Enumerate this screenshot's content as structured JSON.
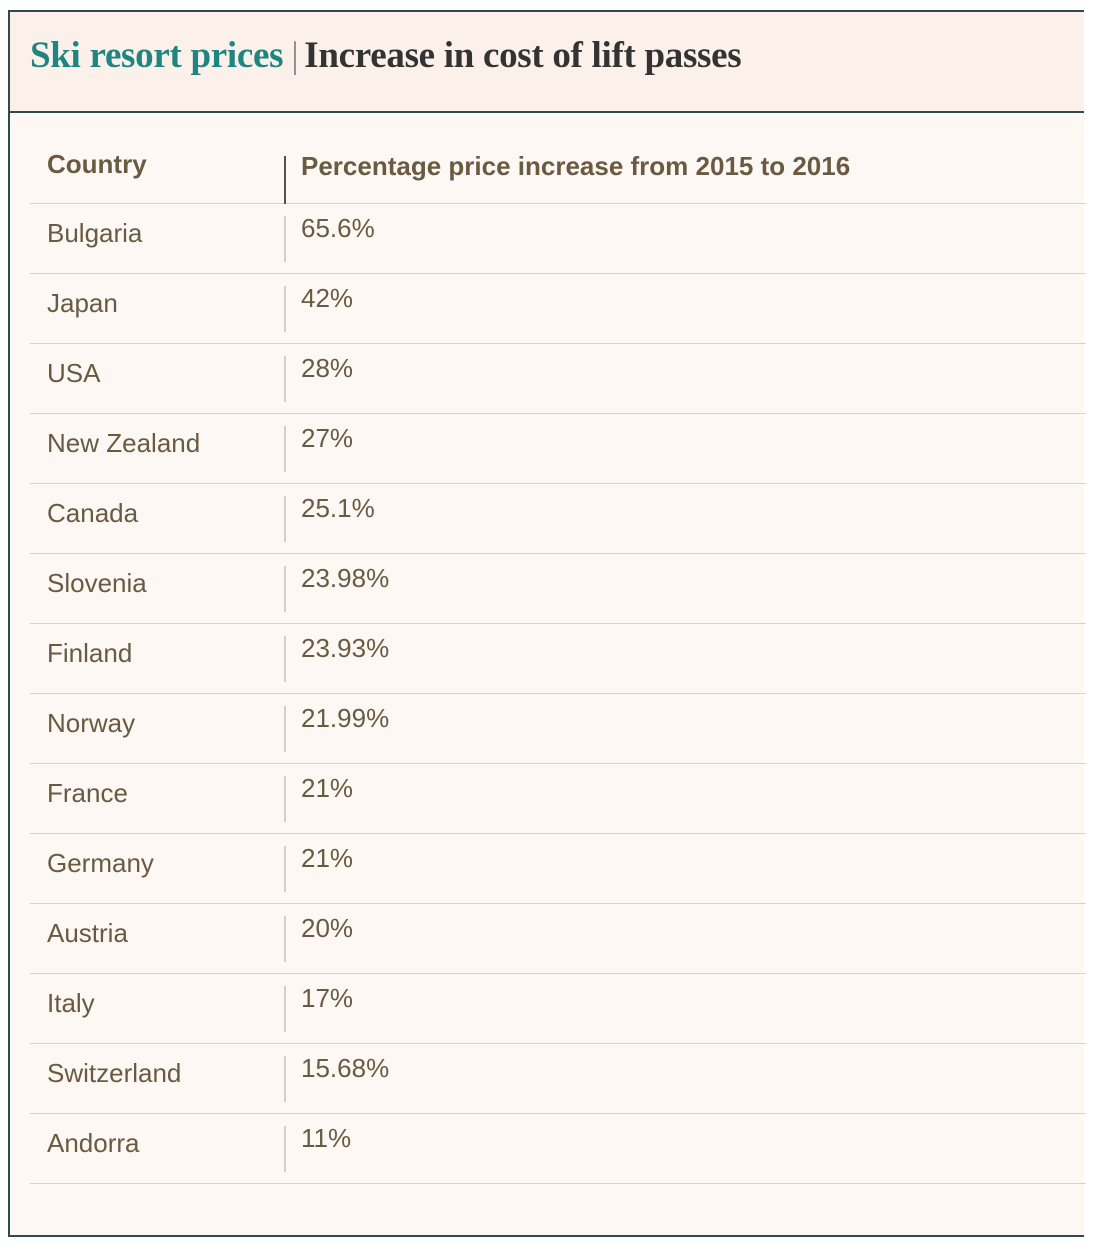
{
  "title": {
    "main": "Ski resort prices",
    "separator": "|",
    "sub": "Increase in cost of lift passes"
  },
  "colors": {
    "accent": "#1e8580",
    "text": "#6a5a42",
    "background": "#fdf8f4"
  },
  "chart_data": {
    "type": "table",
    "columns": [
      "Country",
      "Percentage price increase from 2015 to 2016"
    ],
    "rows": [
      [
        "Bulgaria",
        "65.6%"
      ],
      [
        "Japan",
        "42%"
      ],
      [
        "USA",
        "28%"
      ],
      [
        "New Zealand",
        "27%"
      ],
      [
        "Canada",
        "25.1%"
      ],
      [
        "Slovenia",
        "23.98%"
      ],
      [
        "Finland",
        "23.93%"
      ],
      [
        "Norway",
        "21.99%"
      ],
      [
        "France",
        "21%"
      ],
      [
        "Germany",
        "21%"
      ],
      [
        "Austria",
        "20%"
      ],
      [
        "Italy",
        "17%"
      ],
      [
        "Switzerland",
        "15.68%"
      ],
      [
        "Andorra",
        "11%"
      ]
    ]
  }
}
